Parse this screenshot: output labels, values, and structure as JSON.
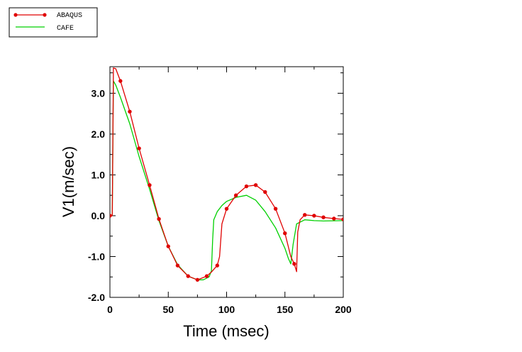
{
  "chart_data": {
    "type": "line",
    "title": "",
    "xlabel": "Time (msec)",
    "ylabel": "V1(m/sec)",
    "xlim": [
      0,
      200
    ],
    "ylim": [
      -2.0,
      3.65
    ],
    "xticks": [
      0,
      50,
      100,
      150,
      200
    ],
    "xtick_labels": [
      "0",
      "50",
      "100",
      "150",
      "200"
    ],
    "yticks": [
      -2.0,
      -1.0,
      0.0,
      1.0,
      2.0,
      3.0
    ],
    "ytick_labels": [
      "-2.0",
      "-1.0",
      "0.0",
      "1.0",
      "2.0",
      "3.0"
    ],
    "grid": false,
    "legend_position": "top-left outside plot",
    "series": [
      {
        "name": "ABAQUS",
        "color": "#e00000",
        "marker": "circle",
        "x": [
          0,
          2,
          3,
          5,
          9,
          17,
          25,
          34,
          42,
          50,
          58,
          67,
          75,
          83,
          87,
          92,
          94,
          96,
          100,
          108,
          117,
          125,
          133,
          142,
          150,
          155,
          158,
          160,
          161,
          163,
          167,
          175,
          183,
          192,
          200
        ],
        "y": [
          0.0,
          0.0,
          3.62,
          3.6,
          3.3,
          2.55,
          1.65,
          0.75,
          -0.08,
          -0.75,
          -1.22,
          -1.48,
          -1.57,
          -1.48,
          -1.38,
          -1.22,
          -1.0,
          -0.2,
          0.17,
          0.5,
          0.72,
          0.75,
          0.58,
          0.17,
          -0.43,
          -1.0,
          -1.18,
          -1.37,
          -0.4,
          -0.1,
          0.02,
          0.0,
          -0.04,
          -0.07,
          -0.09
        ],
        "marker_points": [
          [
            0,
            0.0
          ],
          [
            9,
            3.3
          ],
          [
            17,
            2.55
          ],
          [
            25,
            1.65
          ],
          [
            34,
            0.75
          ],
          [
            42,
            -0.08
          ],
          [
            50,
            -0.75
          ],
          [
            58,
            -1.22
          ],
          [
            67,
            -1.48
          ],
          [
            75,
            -1.57
          ],
          [
            83,
            -1.48
          ],
          [
            92,
            -1.22
          ],
          [
            100,
            0.17
          ],
          [
            108,
            0.5
          ],
          [
            117,
            0.72
          ],
          [
            125,
            0.75
          ],
          [
            133,
            0.58
          ],
          [
            142,
            0.17
          ],
          [
            150,
            -0.43
          ],
          [
            158,
            -1.18
          ],
          [
            167,
            0.02
          ],
          [
            175,
            0.0
          ],
          [
            183,
            -0.04
          ],
          [
            192,
            -0.07
          ],
          [
            200,
            -0.09
          ]
        ]
      },
      {
        "name": "CAFE",
        "color": "#00d000",
        "marker": "none",
        "x": [
          0,
          2,
          3,
          5,
          9,
          17,
          25,
          34,
          42,
          50,
          58,
          67,
          75,
          80,
          85,
          87,
          88,
          89,
          92,
          96,
          100,
          108,
          117,
          125,
          133,
          142,
          150,
          153,
          155,
          157,
          160,
          167,
          175,
          183,
          200
        ],
        "y": [
          0.0,
          0.0,
          3.3,
          3.2,
          2.9,
          2.25,
          1.45,
          0.65,
          -0.12,
          -0.75,
          -1.2,
          -1.48,
          -1.57,
          -1.57,
          -1.5,
          -1.35,
          -0.6,
          -0.1,
          0.1,
          0.25,
          0.35,
          0.45,
          0.5,
          0.38,
          0.1,
          -0.3,
          -0.8,
          -1.05,
          -1.18,
          -0.7,
          -0.2,
          -0.1,
          -0.12,
          -0.13,
          -0.12
        ]
      }
    ]
  }
}
